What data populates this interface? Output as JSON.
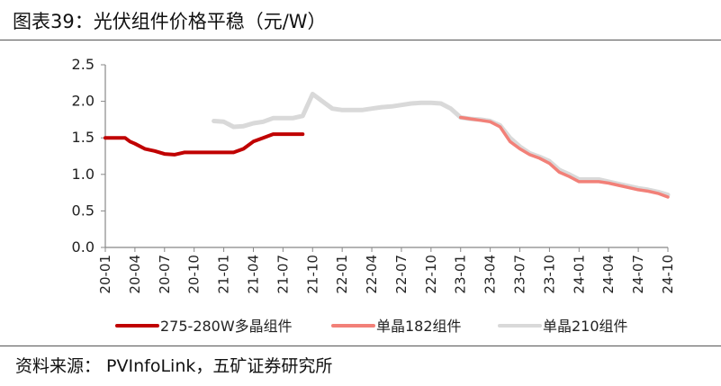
{
  "title": "图表39：光伏组件价格平稳（元/W）",
  "source": "资料来源：  PVInfoLink，五矿证券研究所",
  "chart_data": {
    "type": "line",
    "title": "",
    "xlabel": "",
    "ylabel": "",
    "ylim": [
      0,
      2.5
    ],
    "yticks": [
      "0.0",
      "0.5",
      "1.0",
      "1.5",
      "2.0",
      "2.5"
    ],
    "x_ticks": [
      "20-01",
      "20-04",
      "20-07",
      "20-10",
      "21-01",
      "21-04",
      "21-07",
      "21-10",
      "22-01",
      "22-04",
      "22-07",
      "22-10",
      "23-01",
      "23-04",
      "23-07",
      "23-10",
      "24-01",
      "24-04",
      "24-07",
      "24-10"
    ],
    "grid": false,
    "legend_position": "bottom",
    "series": [
      {
        "name": "275-280W多晶组件",
        "color": "#c00000",
        "points": [
          [
            "20-01",
            1.5
          ],
          [
            "20-02",
            1.5
          ],
          [
            "20-03",
            1.5
          ],
          [
            "20-03.5",
            1.45
          ],
          [
            "20-04",
            1.42
          ],
          [
            "20-05",
            1.35
          ],
          [
            "20-06",
            1.32
          ],
          [
            "20-07",
            1.28
          ],
          [
            "20-08",
            1.27
          ],
          [
            "20-09",
            1.3
          ],
          [
            "20-10",
            1.3
          ],
          [
            "20-11",
            1.3
          ],
          [
            "20-12",
            1.3
          ],
          [
            "21-01",
            1.3
          ],
          [
            "21-02",
            1.3
          ],
          [
            "21-03",
            1.35
          ],
          [
            "21-04",
            1.45
          ],
          [
            "21-05",
            1.5
          ],
          [
            "21-06",
            1.55
          ],
          [
            "21-07",
            1.55
          ],
          [
            "21-08",
            1.55
          ],
          [
            "21-09",
            1.55
          ]
        ]
      },
      {
        "name": "单晶182组件",
        "color": "#f28078",
        "points": [
          [
            "23-01",
            1.78
          ],
          [
            "23-02",
            1.76
          ],
          [
            "23-03",
            1.74
          ],
          [
            "23-04",
            1.72
          ],
          [
            "23-05",
            1.65
          ],
          [
            "23-06",
            1.45
          ],
          [
            "23-07",
            1.35
          ],
          [
            "23-08",
            1.27
          ],
          [
            "23-09",
            1.22
          ],
          [
            "23-10",
            1.15
          ],
          [
            "23-11",
            1.03
          ],
          [
            "23-12",
            0.97
          ],
          [
            "24-01",
            0.9
          ],
          [
            "24-02",
            0.9
          ],
          [
            "24-03",
            0.9
          ],
          [
            "24-04",
            0.88
          ],
          [
            "24-05",
            0.85
          ],
          [
            "24-06",
            0.82
          ],
          [
            "24-07",
            0.79
          ],
          [
            "24-08",
            0.77
          ],
          [
            "24-09",
            0.74
          ],
          [
            "24-10",
            0.69
          ]
        ]
      },
      {
        "name": "单晶210组件",
        "color": "#d9d9d9",
        "points": [
          [
            "20-12",
            1.73
          ],
          [
            "21-01",
            1.72
          ],
          [
            "21-02",
            1.65
          ],
          [
            "21-03",
            1.66
          ],
          [
            "21-04",
            1.7
          ],
          [
            "21-05",
            1.72
          ],
          [
            "21-06",
            1.77
          ],
          [
            "21-07",
            1.77
          ],
          [
            "21-08",
            1.77
          ],
          [
            "21-09",
            1.8
          ],
          [
            "21-10",
            2.1
          ],
          [
            "21-11",
            2.0
          ],
          [
            "21-12",
            1.9
          ],
          [
            "22-01",
            1.88
          ],
          [
            "22-02",
            1.88
          ],
          [
            "22-03",
            1.88
          ],
          [
            "22-04",
            1.9
          ],
          [
            "22-05",
            1.92
          ],
          [
            "22-06",
            1.93
          ],
          [
            "22-07",
            1.95
          ],
          [
            "22-08",
            1.97
          ],
          [
            "22-09",
            1.98
          ],
          [
            "22-10",
            1.98
          ],
          [
            "22-11",
            1.97
          ],
          [
            "22-12",
            1.9
          ],
          [
            "23-01",
            1.78
          ],
          [
            "23-02",
            1.76
          ],
          [
            "23-03",
            1.75
          ],
          [
            "23-04",
            1.73
          ],
          [
            "23-05",
            1.67
          ],
          [
            "23-06",
            1.5
          ],
          [
            "23-07",
            1.38
          ],
          [
            "23-08",
            1.29
          ],
          [
            "23-09",
            1.24
          ],
          [
            "23-10",
            1.18
          ],
          [
            "23-11",
            1.06
          ],
          [
            "23-12",
            1.0
          ],
          [
            "24-01",
            0.93
          ],
          [
            "24-02",
            0.93
          ],
          [
            "24-03",
            0.93
          ],
          [
            "24-04",
            0.9
          ],
          [
            "24-05",
            0.87
          ],
          [
            "24-06",
            0.84
          ],
          [
            "24-07",
            0.81
          ],
          [
            "24-08",
            0.79
          ],
          [
            "24-09",
            0.76
          ],
          [
            "24-10",
            0.72
          ]
        ]
      }
    ]
  }
}
